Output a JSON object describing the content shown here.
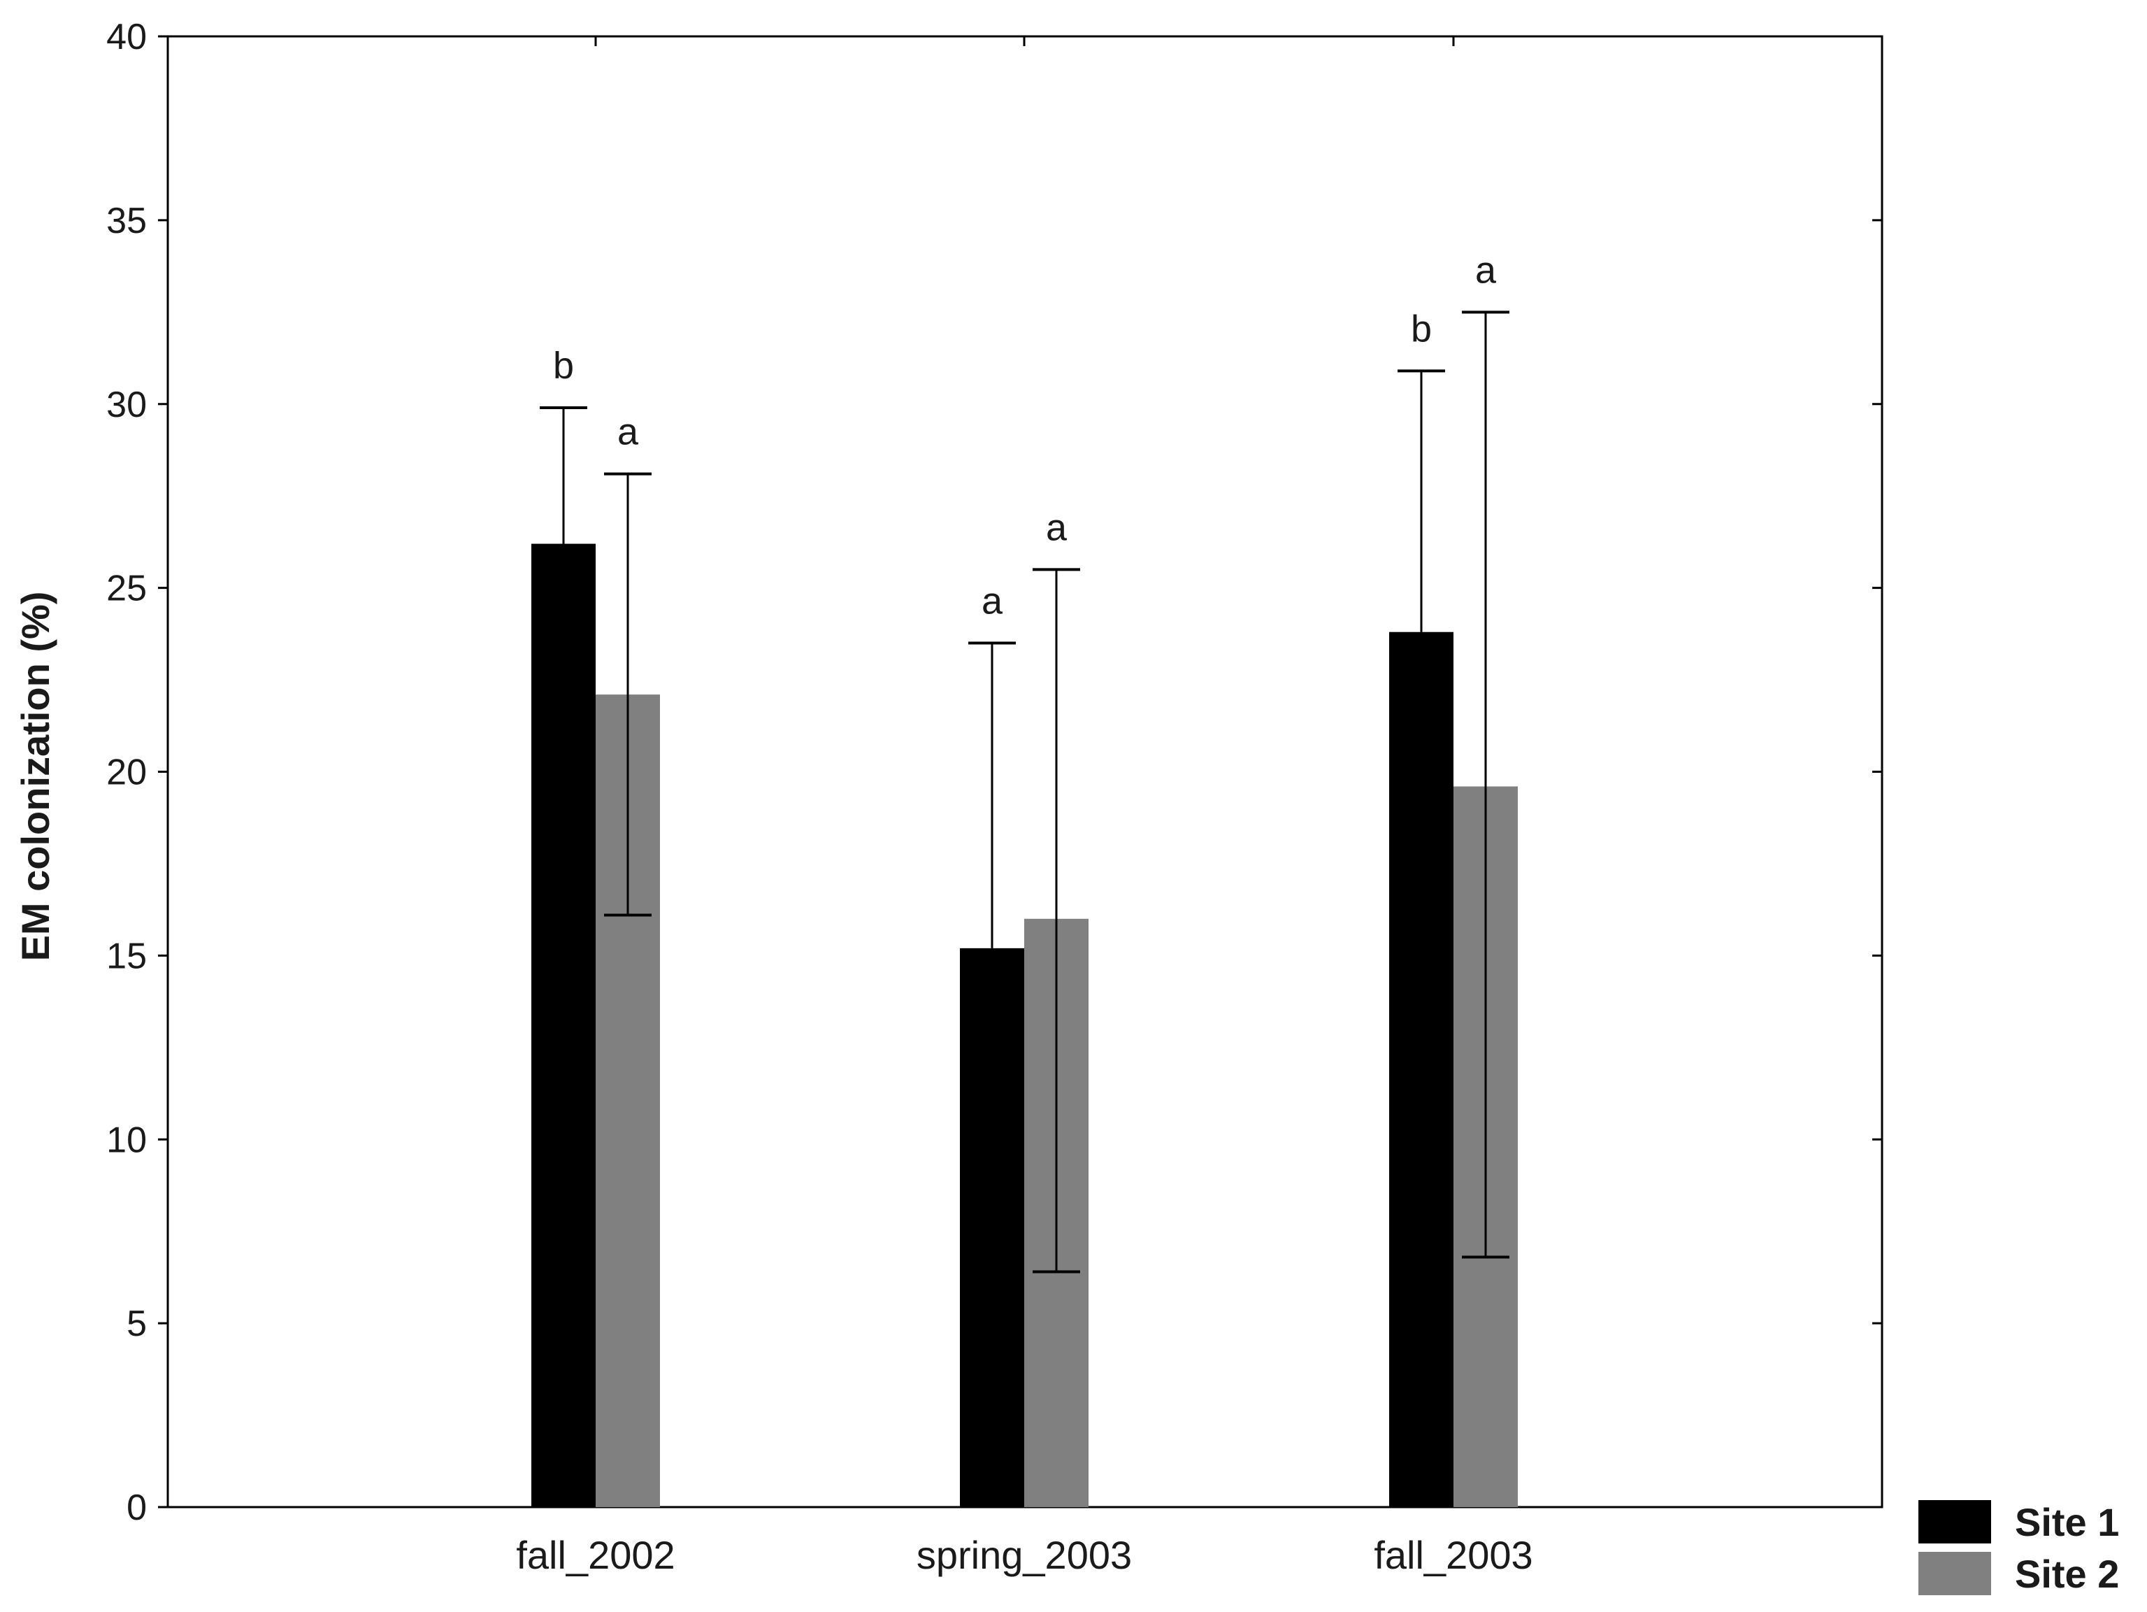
{
  "chart_data": {
    "type": "bar",
    "title": "",
    "xlabel": "",
    "ylabel": "EM colonization (%)",
    "ylim": [
      0,
      40
    ],
    "yticks": [
      0,
      5,
      10,
      15,
      20,
      25,
      30,
      35,
      40
    ],
    "categories": [
      "fall_2002",
      "spring_2003",
      "fall_2003"
    ],
    "series": [
      {
        "name": "Site 1",
        "color": "#000000",
        "values": [
          26.2,
          15.2,
          23.8
        ],
        "error_upper": [
          29.9,
          23.5,
          30.9
        ],
        "error_lower": [
          26.2,
          15.2,
          23.8
        ],
        "significance": [
          "b",
          "a",
          "b"
        ]
      },
      {
        "name": "Site 2",
        "color": "#808080",
        "values": [
          22.1,
          16.0,
          19.6
        ],
        "error_upper": [
          28.1,
          25.5,
          32.5
        ],
        "error_lower": [
          16.1,
          6.4,
          6.8
        ],
        "significance": [
          "a",
          "a",
          "a"
        ]
      }
    ],
    "grid": false,
    "legend_position": "bottom-right-outside"
  }
}
